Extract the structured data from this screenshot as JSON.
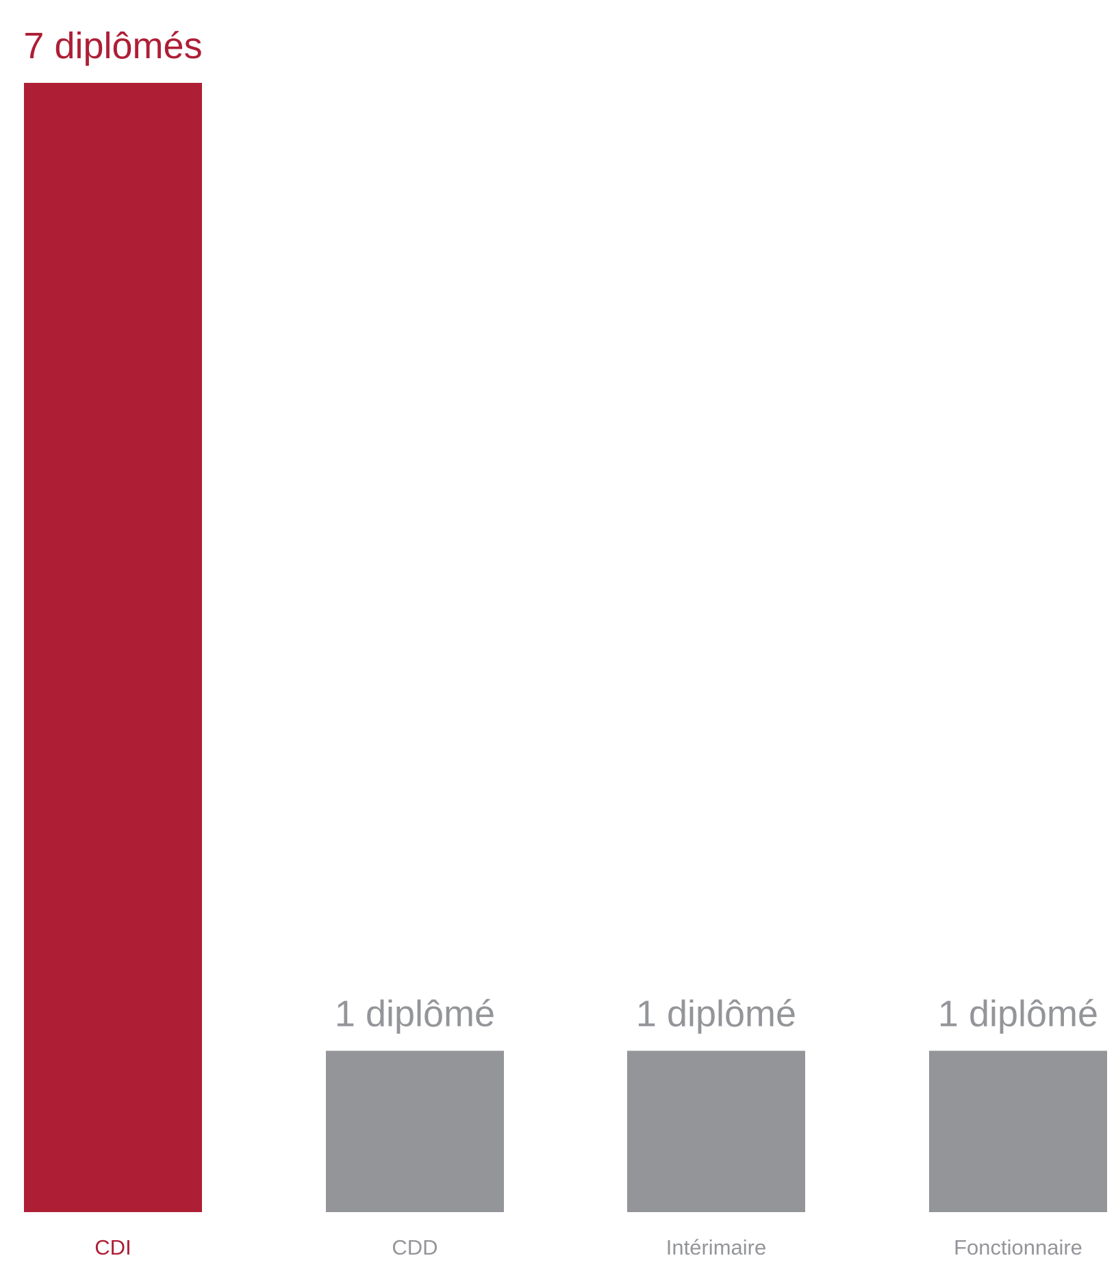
{
  "colors": {
    "highlight": "#ae1e35",
    "muted_bar": "#939599",
    "muted_text": "#939599",
    "background": "#ffffff"
  },
  "chart_data": {
    "type": "bar",
    "categories": [
      "CDI",
      "CDD",
      "Intérimaire",
      "Fonctionnaire"
    ],
    "values": [
      7,
      1,
      1,
      1
    ],
    "data_labels": [
      "7 diplômés",
      "1 diplômé",
      "1 diplômé",
      "1 diplômé"
    ],
    "highlight_index": 0,
    "title": "",
    "xlabel": "",
    "ylabel": "",
    "ylim": [
      0,
      7
    ],
    "grid": false,
    "legend": "none"
  }
}
